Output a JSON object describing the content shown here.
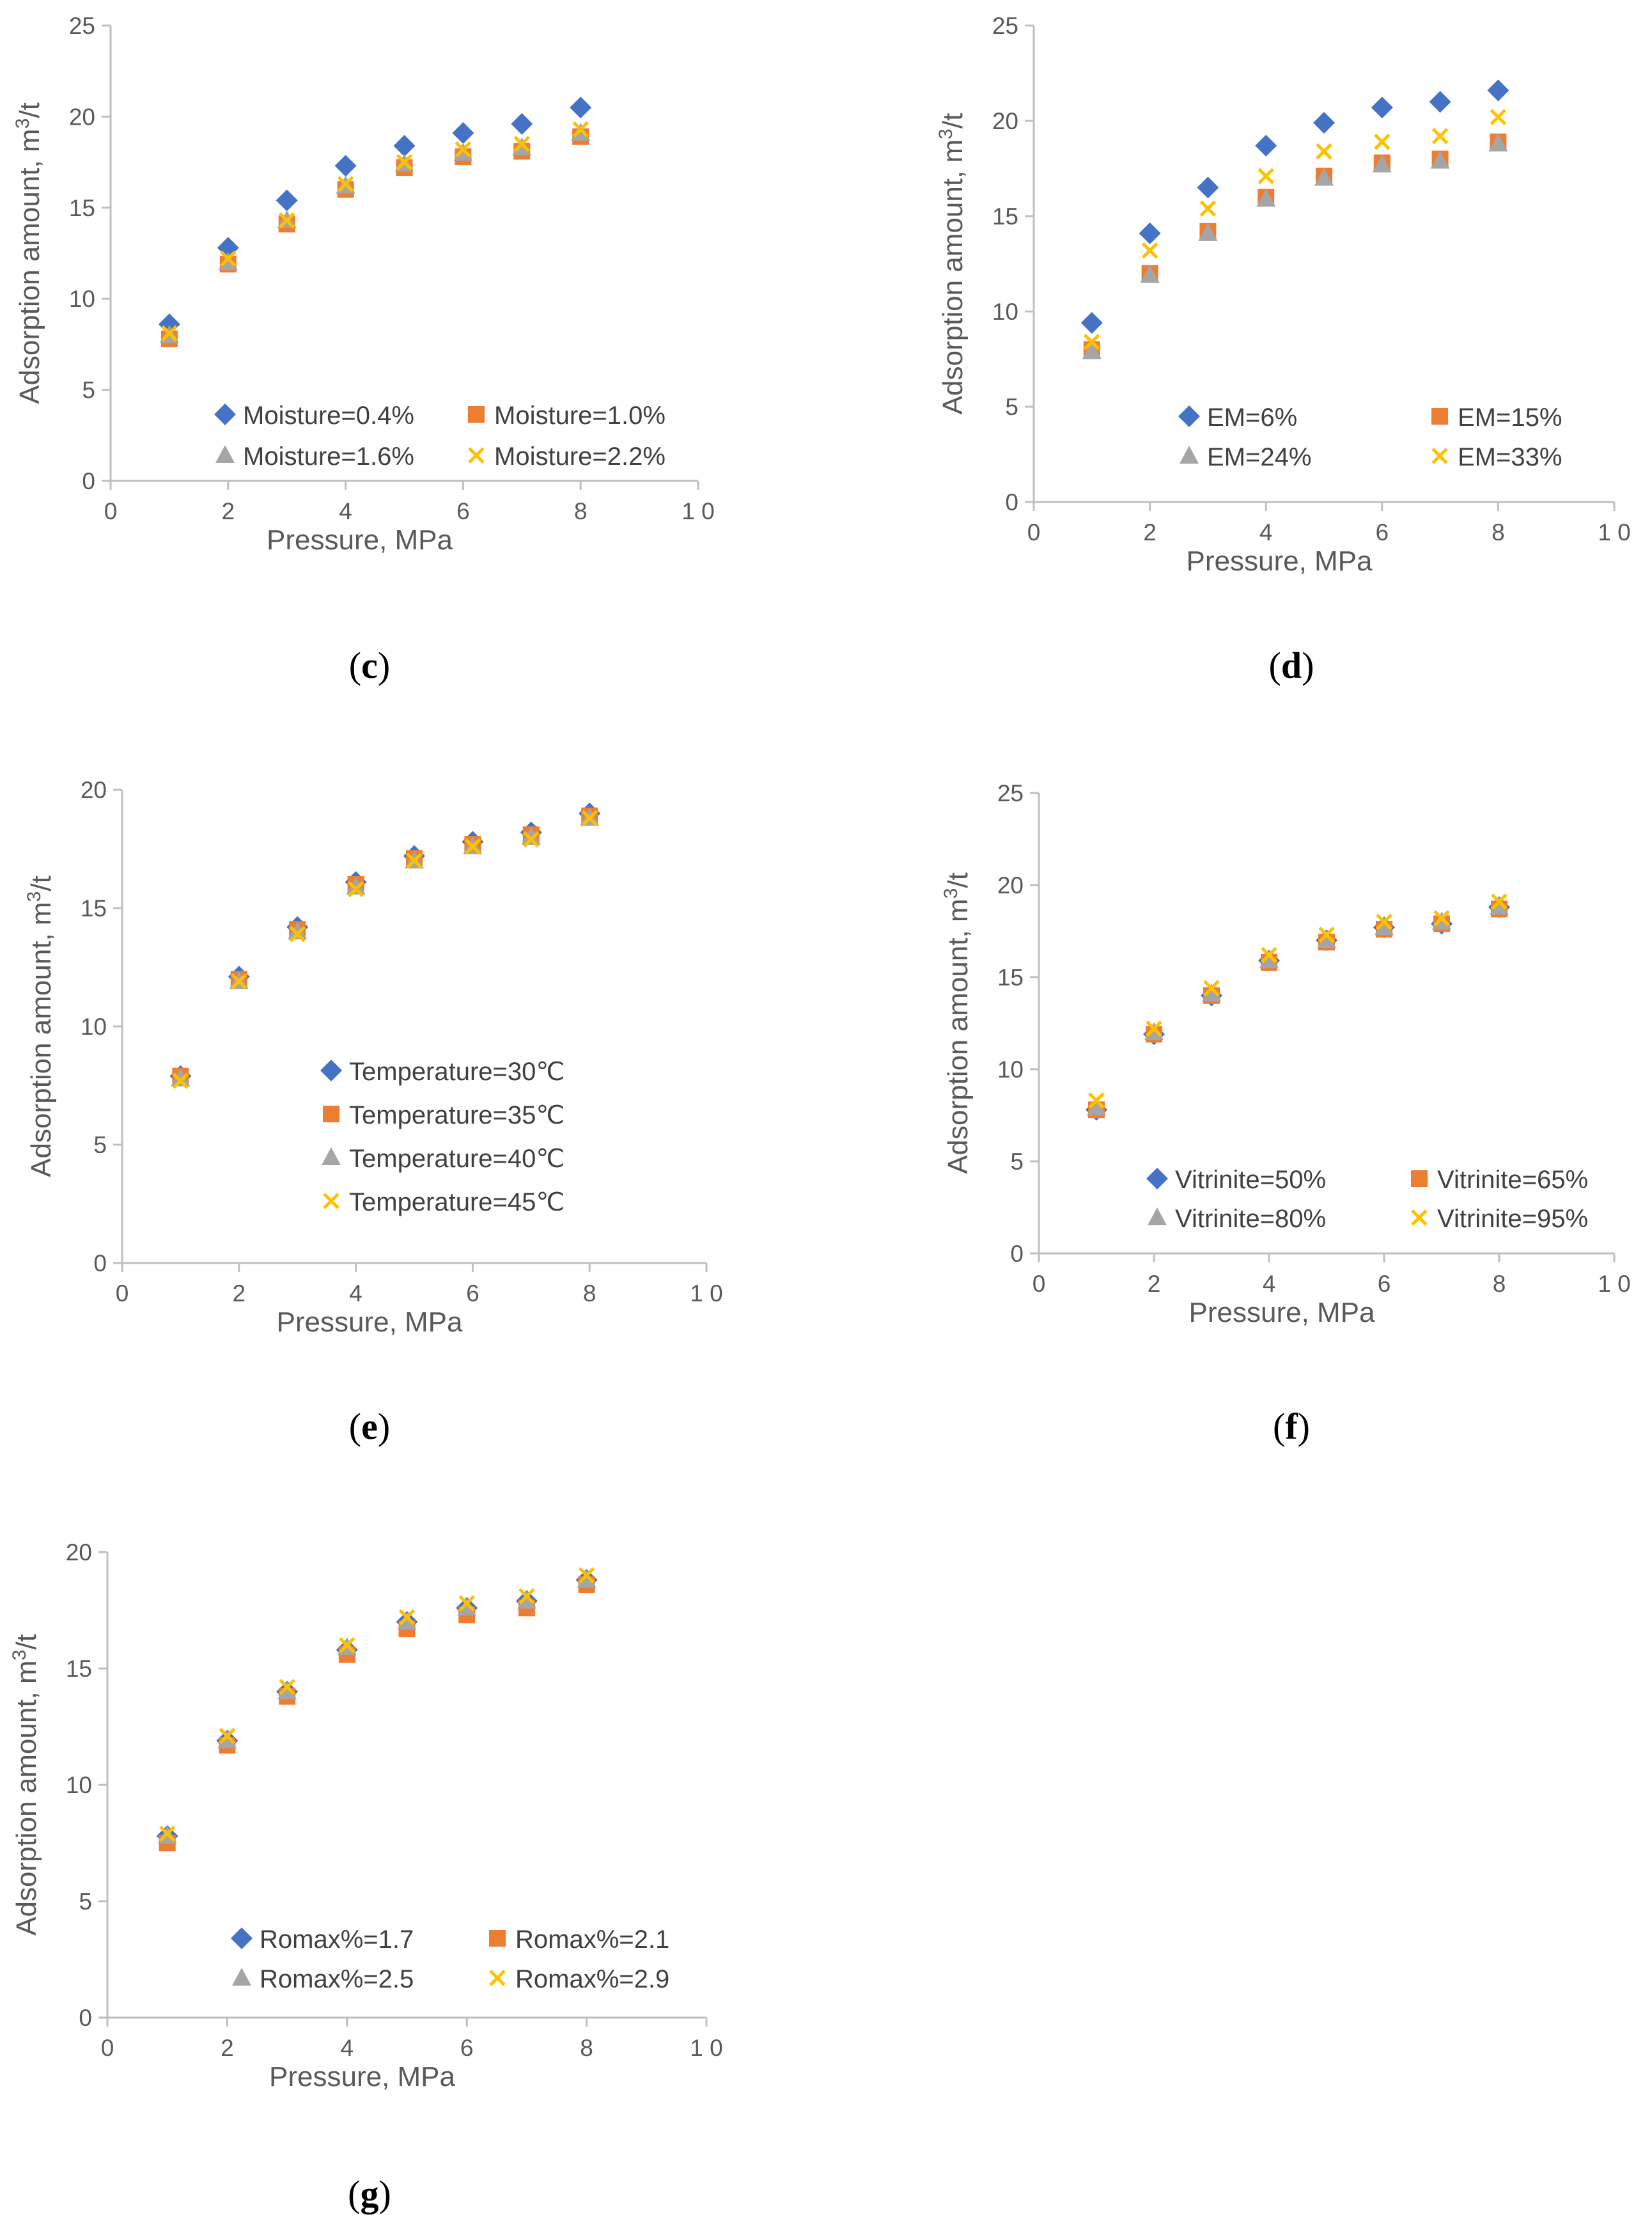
{
  "colors": {
    "series": [
      "#4472C4",
      "#ED7D31",
      "#A5A5A5",
      "#FFC000"
    ],
    "axis": "#bfbfbf",
    "text": "#595959"
  },
  "chart_data": [
    {
      "id": "c",
      "caption": "c",
      "type": "scatter",
      "xlabel": "Pressure, MPa",
      "ylabel": "Adsorption amount, m",
      "ylabel_sup": "3",
      "ylabel_tail": "/t",
      "xlim": [
        0,
        10
      ],
      "ylim": [
        0,
        25
      ],
      "xticks": [
        "0",
        "2",
        "4",
        "6",
        "8",
        "1 0"
      ],
      "yticks": [
        "0",
        "5",
        "10",
        "15",
        "20",
        "25"
      ],
      "legend_layout": "two-column",
      "x": [
        1,
        2,
        3,
        4,
        5,
        6,
        7,
        8
      ],
      "series": [
        {
          "name": "Moisture=0.4%",
          "marker": "diamond-icon",
          "values": [
            8.6,
            12.8,
            15.4,
            17.3,
            18.4,
            19.1,
            19.6,
            20.5
          ]
        },
        {
          "name": "Moisture=1.0%",
          "marker": "square-icon",
          "values": [
            7.8,
            11.9,
            14.1,
            16.0,
            17.2,
            17.8,
            18.1,
            18.9
          ]
        },
        {
          "name": "Moisture=1.6%",
          "marker": "triangle-icon",
          "values": [
            8.0,
            12.0,
            14.3,
            16.2,
            17.4,
            18.0,
            18.3,
            19.1
          ]
        },
        {
          "name": "Moisture=2.2%",
          "marker": "cross-icon",
          "values": [
            8.1,
            12.2,
            14.3,
            16.3,
            17.5,
            18.2,
            18.5,
            19.3
          ]
        }
      ]
    },
    {
      "id": "d",
      "caption": "d",
      "type": "scatter",
      "xlabel": "Pressure, MPa",
      "ylabel": "Adsorption amount, m",
      "ylabel_sup": "3",
      "ylabel_tail": "/t",
      "xlim": [
        0,
        10
      ],
      "ylim": [
        0,
        25
      ],
      "xticks": [
        "0",
        "2",
        "4",
        "6",
        "8",
        "1 0"
      ],
      "yticks": [
        "0",
        "5",
        "10",
        "15",
        "20",
        "25"
      ],
      "legend_layout": "two-column",
      "x": [
        1,
        2,
        3,
        4,
        5,
        6,
        7,
        8
      ],
      "series": [
        {
          "name": "EM=6%",
          "marker": "diamond-icon",
          "values": [
            9.4,
            14.1,
            16.5,
            18.7,
            19.9,
            20.7,
            21.0,
            21.6
          ]
        },
        {
          "name": "EM=15%",
          "marker": "square-icon",
          "values": [
            8.0,
            12.0,
            14.2,
            16.0,
            17.1,
            17.8,
            18.0,
            18.9
          ]
        },
        {
          "name": "EM=24%",
          "marker": "triangle-icon",
          "values": [
            7.9,
            11.9,
            14.1,
            15.9,
            17.0,
            17.7,
            17.9,
            18.8
          ]
        },
        {
          "name": "EM=33%",
          "marker": "cross-icon",
          "values": [
            8.4,
            13.2,
            15.4,
            17.1,
            18.4,
            18.9,
            19.2,
            20.2
          ]
        }
      ]
    },
    {
      "id": "e",
      "caption": "e",
      "type": "scatter",
      "xlabel": "Pressure, MPa",
      "ylabel": "Adsorption amount, m",
      "ylabel_sup": "3",
      "ylabel_tail": "/t",
      "xlim": [
        0,
        10
      ],
      "ylim": [
        0,
        20
      ],
      "xticks": [
        "0",
        "2",
        "4",
        "6",
        "8",
        "1 0"
      ],
      "yticks": [
        "0",
        "5",
        "10",
        "15",
        "20"
      ],
      "legend_layout": "one-column",
      "x": [
        1,
        2,
        3,
        4,
        5,
        6,
        7,
        8
      ],
      "series": [
        {
          "name": "Temperature=30℃",
          "marker": "diamond-icon",
          "values": [
            7.9,
            12.1,
            14.2,
            16.1,
            17.2,
            17.8,
            18.2,
            19.0
          ]
        },
        {
          "name": "Temperature=35℃",
          "marker": "square-icon",
          "values": [
            7.9,
            12.0,
            14.1,
            16.0,
            17.1,
            17.7,
            18.1,
            18.9
          ]
        },
        {
          "name": "Temperature=40℃",
          "marker": "triangle-icon",
          "values": [
            7.8,
            11.9,
            14.0,
            15.9,
            17.0,
            17.6,
            18.0,
            18.8
          ]
        },
        {
          "name": "Temperature=45℃",
          "marker": "cross-icon",
          "values": [
            7.7,
            11.9,
            13.9,
            15.8,
            17.0,
            17.6,
            17.9,
            18.8
          ]
        }
      ]
    },
    {
      "id": "f",
      "caption": "f",
      "type": "scatter",
      "xlabel": "Pressure, MPa",
      "ylabel": "Adsorption amount, m",
      "ylabel_sup": "3",
      "ylabel_tail": "/t",
      "xlim": [
        0,
        10
      ],
      "ylim": [
        0,
        25
      ],
      "xticks": [
        "0",
        "2",
        "4",
        "6",
        "8",
        "1 0"
      ],
      "yticks": [
        "0",
        "5",
        "10",
        "15",
        "20",
        "25"
      ],
      "legend_layout": "two-column",
      "x": [
        1,
        2,
        3,
        4,
        5,
        6,
        7,
        8
      ],
      "series": [
        {
          "name": "Vitrinite=50%",
          "marker": "diamond-icon",
          "values": [
            7.8,
            11.9,
            14.0,
            15.9,
            17.0,
            17.7,
            17.9,
            18.8
          ]
        },
        {
          "name": "Vitrinite=65%",
          "marker": "square-icon",
          "values": [
            7.8,
            11.9,
            14.0,
            15.8,
            16.9,
            17.6,
            17.9,
            18.7
          ]
        },
        {
          "name": "Vitrinite=80%",
          "marker": "triangle-icon",
          "values": [
            7.9,
            12.0,
            14.1,
            15.9,
            17.0,
            17.7,
            18.0,
            18.8
          ]
        },
        {
          "name": "Vitrinite=95%",
          "marker": "cross-icon",
          "values": [
            8.3,
            12.2,
            14.4,
            16.2,
            17.3,
            18.0,
            18.2,
            19.1
          ]
        }
      ]
    },
    {
      "id": "g",
      "caption": "g",
      "type": "scatter",
      "xlabel": "Pressure, MPa",
      "ylabel": "Adsorption amount, m",
      "ylabel_sup": "3",
      "ylabel_tail": "/t",
      "xlim": [
        0,
        10
      ],
      "ylim": [
        0,
        20
      ],
      "xticks": [
        "0",
        "2",
        "4",
        "6",
        "8",
        "1 0"
      ],
      "yticks": [
        "0",
        "5",
        "10",
        "15",
        "20"
      ],
      "legend_layout": "two-column",
      "x": [
        1,
        2,
        3,
        4,
        5,
        6,
        7,
        8
      ],
      "series": [
        {
          "name": "Romax%=1.7",
          "marker": "diamond-icon",
          "values": [
            7.8,
            11.9,
            14.0,
            15.8,
            17.0,
            17.6,
            17.9,
            18.8
          ]
        },
        {
          "name": "Romax%=2.1",
          "marker": "square-icon",
          "values": [
            7.5,
            11.7,
            13.8,
            15.6,
            16.7,
            17.3,
            17.6,
            18.6
          ]
        },
        {
          "name": "Romax%=2.5",
          "marker": "triangle-icon",
          "values": [
            7.8,
            11.9,
            14.0,
            15.9,
            17.0,
            17.6,
            17.9,
            18.8
          ]
        },
        {
          "name": "Romax%=2.9",
          "marker": "cross-icon",
          "values": [
            7.9,
            12.1,
            14.2,
            16.0,
            17.2,
            17.8,
            18.1,
            19.0
          ]
        }
      ]
    }
  ]
}
